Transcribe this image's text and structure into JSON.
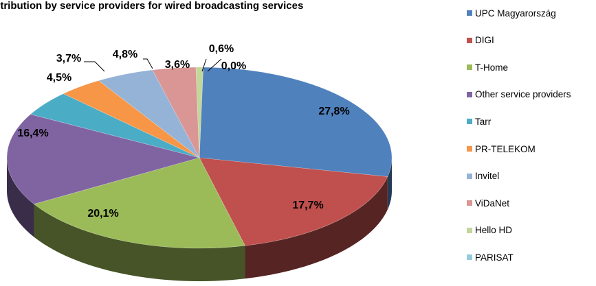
{
  "chart_data": {
    "type": "pie",
    "title": "stribution by service providers for wired broadcasting services",
    "legend_position": "right",
    "three_d": true,
    "slices": [
      {
        "name": "UPC Magyarország",
        "value": 27.8,
        "label": "27,8%",
        "color": "#4F81BD"
      },
      {
        "name": "DIGI",
        "value": 17.7,
        "label": "17,7%",
        "color": "#C0504D"
      },
      {
        "name": "T-Home",
        "value": 20.1,
        "label": "20,1%",
        "color": "#9BBB59"
      },
      {
        "name": "Other service providers",
        "value": 16.4,
        "label": "16,4%",
        "color": "#8064A2"
      },
      {
        "name": "Tarr",
        "value": 4.5,
        "label": "4,5%",
        "color": "#4BACC6"
      },
      {
        "name": "PR-TELEKOM",
        "value": 3.7,
        "label": "3,7%",
        "color": "#F79646"
      },
      {
        "name": "Invitel",
        "value": 4.8,
        "label": "4,8%",
        "color": "#95B3D7"
      },
      {
        "name": "ViDaNet",
        "value": 3.6,
        "label": "3,6%",
        "color": "#D99694"
      },
      {
        "name": "Hello HD",
        "value": 0.6,
        "label": "0,6%",
        "color": "#C3D69B"
      },
      {
        "name": "PARISAT",
        "value": 0.0,
        "label": "0,0%",
        "color": "#93CDDD"
      }
    ]
  }
}
